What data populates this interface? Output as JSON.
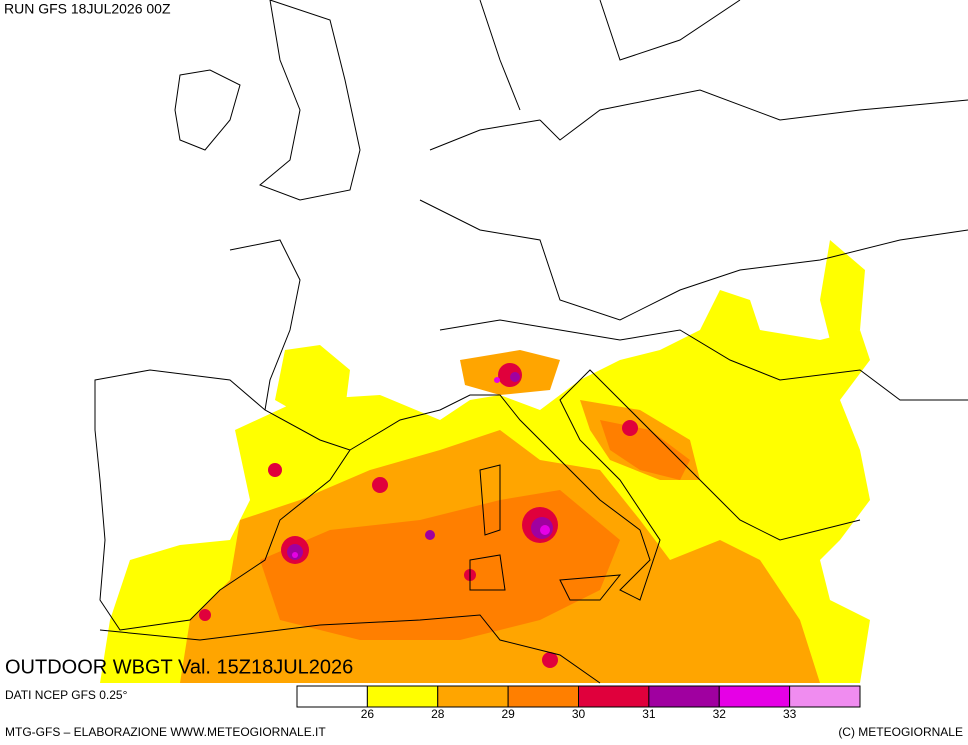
{
  "header": {
    "run": "RUN GFS 18JUL2026 00Z"
  },
  "map": {
    "title": "OUTDOOR WBGT Val. 15Z18JUL2026",
    "source": "DATI NCEP GFS 0.25°"
  },
  "legend": {
    "colors": [
      "#ffffff",
      "#ffff00",
      "#ffa500",
      "#ff7f00",
      "#e0003c",
      "#a000a0",
      "#e600e6",
      "#f08cf0"
    ],
    "ticks": [
      26,
      28,
      29,
      30,
      31,
      32,
      33
    ]
  },
  "footer": {
    "left": "MTG-GFS – ELABORAZIONE WWW.METEOGIORNALE.IT",
    "right": "(C) METEOGIORNALE"
  }
}
